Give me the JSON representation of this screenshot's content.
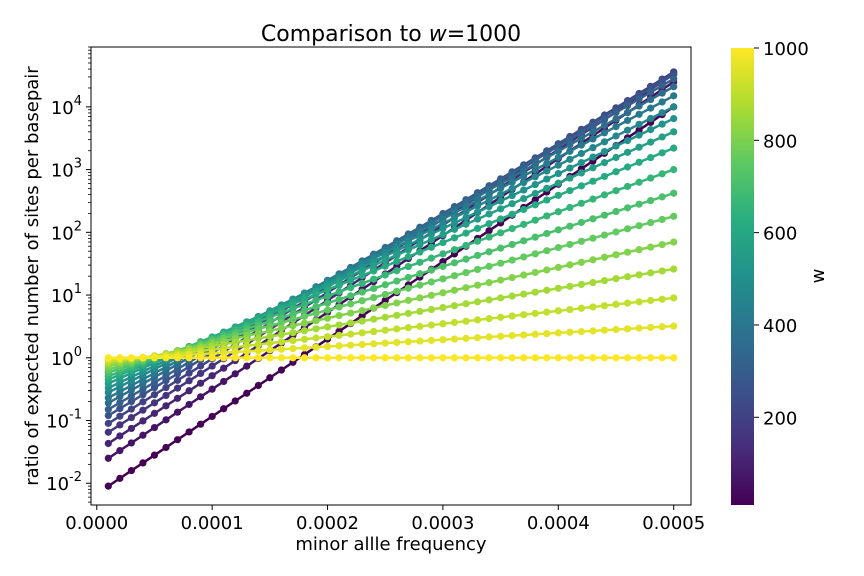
{
  "chart_data": {
    "type": "line",
    "title_prefix": "Comparison to ",
    "title_var": "w",
    "title_suffix": "=1000",
    "xlabel": "minor allle frequency",
    "ylabel": "ratio of expected number of sites per basepair",
    "xscale": "linear",
    "yscale": "log",
    "xlim": [
      -5e-06,
      0.000515
    ],
    "ylim": [
      0.0045,
      90000
    ],
    "x_ticks": [
      0.0,
      0.0001,
      0.0002,
      0.0003,
      0.0004,
      0.0005
    ],
    "x_tick_labels": [
      "0.0000",
      "0.0001",
      "0.0002",
      "0.0003",
      "0.0004",
      "0.0005"
    ],
    "y_ticks": [
      {
        "base": "10",
        "exp": "-2",
        "value": 0.01
      },
      {
        "base": "10",
        "exp": "-1",
        "value": 0.1
      },
      {
        "base": "10",
        "exp": "0",
        "value": 1
      },
      {
        "base": "10",
        "exp": "1",
        "value": 10
      },
      {
        "base": "10",
        "exp": "2",
        "value": 100
      },
      {
        "base": "10",
        "exp": "3",
        "value": 1000
      },
      {
        "base": "10",
        "exp": "4",
        "value": 10000
      }
    ],
    "grid": false,
    "marker": "circle",
    "x_start": 1e-05,
    "x_end": 0.0005,
    "n_points": 50,
    "colormap": "viridis",
    "colorbar": {
      "label": "w",
      "min": 10,
      "max": 1000,
      "ticks": [
        200,
        400,
        600,
        800,
        1000
      ],
      "tick_labels": [
        "200",
        "400",
        "600",
        "800",
        "1000"
      ]
    },
    "series": [
      {
        "w": 10,
        "y_start": 0.009,
        "y_end": 10000
      },
      {
        "w": 60,
        "y_start": 0.025,
        "y_end": 25000
      },
      {
        "w": 110,
        "y_start": 0.043,
        "y_end": 33000
      },
      {
        "w": 160,
        "y_start": 0.065,
        "y_end": 36000
      },
      {
        "w": 210,
        "y_start": 0.09,
        "y_end": 36000
      },
      {
        "w": 260,
        "y_start": 0.12,
        "y_end": 33000
      },
      {
        "w": 310,
        "y_start": 0.15,
        "y_end": 28000
      },
      {
        "w": 360,
        "y_start": 0.19,
        "y_end": 21000
      },
      {
        "w": 410,
        "y_start": 0.23,
        "y_end": 15000
      },
      {
        "w": 460,
        "y_start": 0.28,
        "y_end": 10000
      },
      {
        "w": 510,
        "y_start": 0.33,
        "y_end": 6500
      },
      {
        "w": 560,
        "y_start": 0.39,
        "y_end": 4000
      },
      {
        "w": 610,
        "y_start": 0.45,
        "y_end": 2200
      },
      {
        "w": 660,
        "y_start": 0.51,
        "y_end": 1000
      },
      {
        "w": 710,
        "y_start": 0.58,
        "y_end": 420
      },
      {
        "w": 760,
        "y_start": 0.65,
        "y_end": 180
      },
      {
        "w": 810,
        "y_start": 0.73,
        "y_end": 70
      },
      {
        "w": 860,
        "y_start": 0.81,
        "y_end": 26
      },
      {
        "w": 910,
        "y_start": 0.88,
        "y_end": 9
      },
      {
        "w": 960,
        "y_start": 0.94,
        "y_end": 3.2
      },
      {
        "w": 1000,
        "y_start": 1.0,
        "y_end": 1.0
      }
    ]
  }
}
